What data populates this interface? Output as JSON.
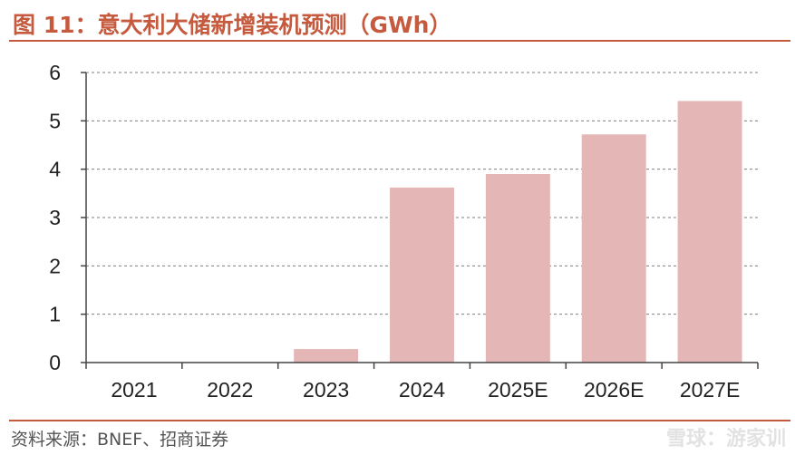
{
  "title": "图 11：意大利大储新增装机预测（GWh）",
  "source": "资料来源：BNEF、招商证券",
  "watermark": "雪球：游家训",
  "colors": {
    "bar": "#e4b7b6",
    "title": "#c55a3e",
    "rule": "#c55a3e",
    "grid": "#7f7f7f",
    "axis": "#444444"
  },
  "chart_data": {
    "type": "bar",
    "categories": [
      "2021",
      "2022",
      "2023",
      "2024",
      "2025E",
      "2026E",
      "2027E"
    ],
    "values": [
      0,
      0,
      0.28,
      3.62,
      3.9,
      4.72,
      5.41
    ],
    "title": "",
    "xlabel": "",
    "ylabel": "",
    "ylim": [
      0,
      6
    ],
    "yticks": [
      0,
      1,
      2,
      3,
      4,
      5,
      6
    ],
    "grid": true,
    "legend": "none"
  }
}
